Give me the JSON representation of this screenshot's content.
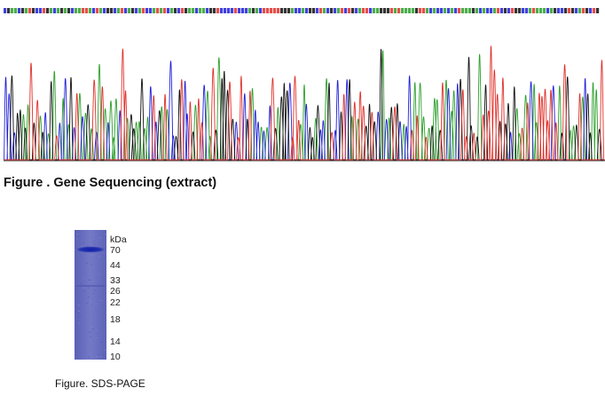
{
  "figures": {
    "sequencing": {
      "caption": "Figure . Gene Sequencing (extract)",
      "trace_colors": {
        "A": "#2ca02c",
        "C": "#1f1fd8",
        "G": "#111111",
        "T": "#e0302a"
      }
    },
    "sds_page": {
      "caption": "Figure. SDS-PAGE",
      "unit": "kDa",
      "markers": [
        "70",
        "44",
        "33",
        "26",
        "22",
        "18",
        "14",
        "10"
      ],
      "gel_color": "#6f74c2",
      "band_color": "#1d2aa6"
    }
  }
}
